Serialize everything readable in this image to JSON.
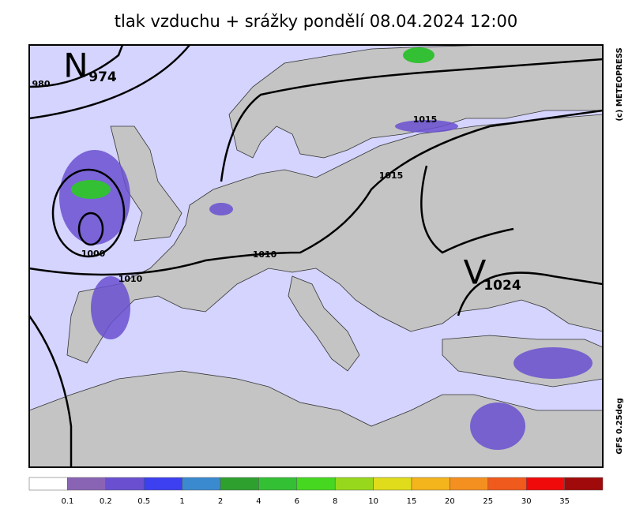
{
  "title": "tlak vzduchu + srážky pondělí 08.04.2024 12:00",
  "lows": [
    {
      "letter": "N",
      "pressure": "974"
    }
  ],
  "highs": [
    {
      "letter": "V",
      "pressure": "1024"
    }
  ],
  "isobar_labels": [
    "980",
    "1000",
    "1010",
    "1010",
    "1015",
    "1015"
  ],
  "credit": "(c) METEOPRESS",
  "model": "GFS 0.25deg",
  "legend": {
    "colors": [
      "#ffffff",
      "#8a64b4",
      "#6a50d0",
      "#3c40f0",
      "#3a8ad0",
      "#2ea02e",
      "#34c034",
      "#46d820",
      "#98d81c",
      "#e0dc1c",
      "#f4b41c",
      "#f49020",
      "#f05a1c",
      "#f00a0a",
      "#a00a0a"
    ],
    "labels": [
      "0.1",
      "0.2",
      "0.5",
      "1",
      "2",
      "4",
      "6",
      "8",
      "10",
      "15",
      "20",
      "25",
      "30",
      "35"
    ]
  }
}
